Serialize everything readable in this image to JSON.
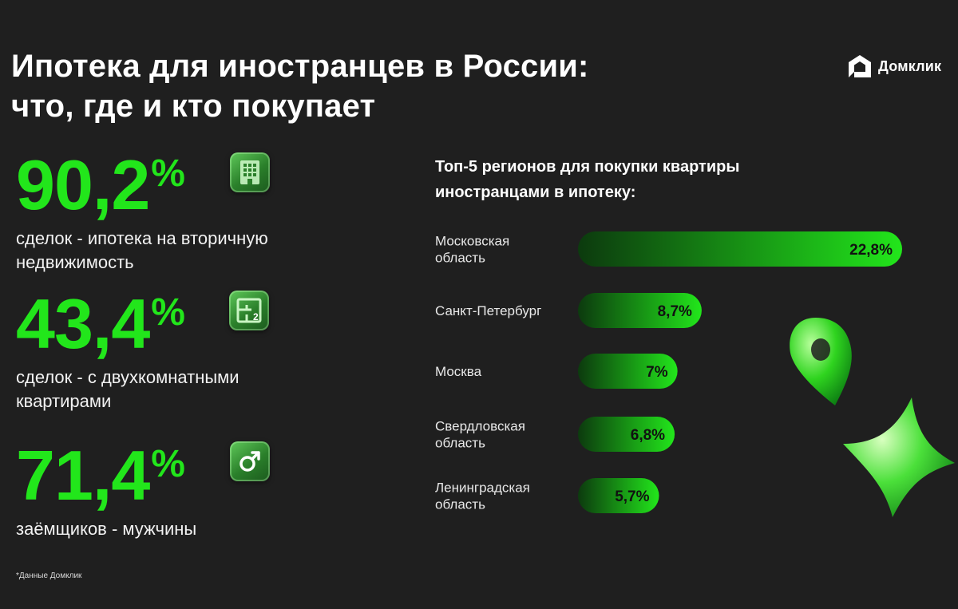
{
  "title": {
    "line1": "Ипотека для иностранцев в России:",
    "line2": "что, где и кто покупает"
  },
  "brand": {
    "name": "Домклик"
  },
  "stats": [
    {
      "value": "90,2",
      "unit": "%",
      "desc_line1": "сделок - ипотека на вторичную",
      "desc_line2": "недвижимость",
      "icon": "building-icon"
    },
    {
      "value": "43,4",
      "unit": "%",
      "desc_line1": "сделок - с двухкомнатными",
      "desc_line2": "квартирами",
      "icon": "floorplan-icon"
    },
    {
      "value": "71,4",
      "unit": "%",
      "desc_line1": "заёмщиков - мужчины",
      "desc_line2": "",
      "icon": "male-icon"
    }
  ],
  "chart_data": {
    "type": "bar",
    "orientation": "horizontal",
    "title": "Топ-5 регионов для покупки квартиры иностранцами в ипотеку:",
    "title_line1": "Топ-5 регионов для покупки квартиры",
    "title_line2": "иностранцами в ипотеку:",
    "categories": [
      [
        "Московская",
        "область"
      ],
      [
        "Санкт-Петербург"
      ],
      [
        "Москва"
      ],
      [
        "Свердловская",
        "область"
      ],
      [
        "Ленинградская",
        "область"
      ]
    ],
    "values": [
      22.8,
      8.7,
      7.0,
      6.8,
      5.7
    ],
    "value_labels": [
      "22,8%",
      "8,7%",
      "7%",
      "6,8%",
      "5,7%"
    ],
    "colors": {
      "bar_start": "#0c3a0e",
      "bar_end": "#22e61b",
      "label": "#111111"
    }
  },
  "footnote": "*Данные Домклик"
}
